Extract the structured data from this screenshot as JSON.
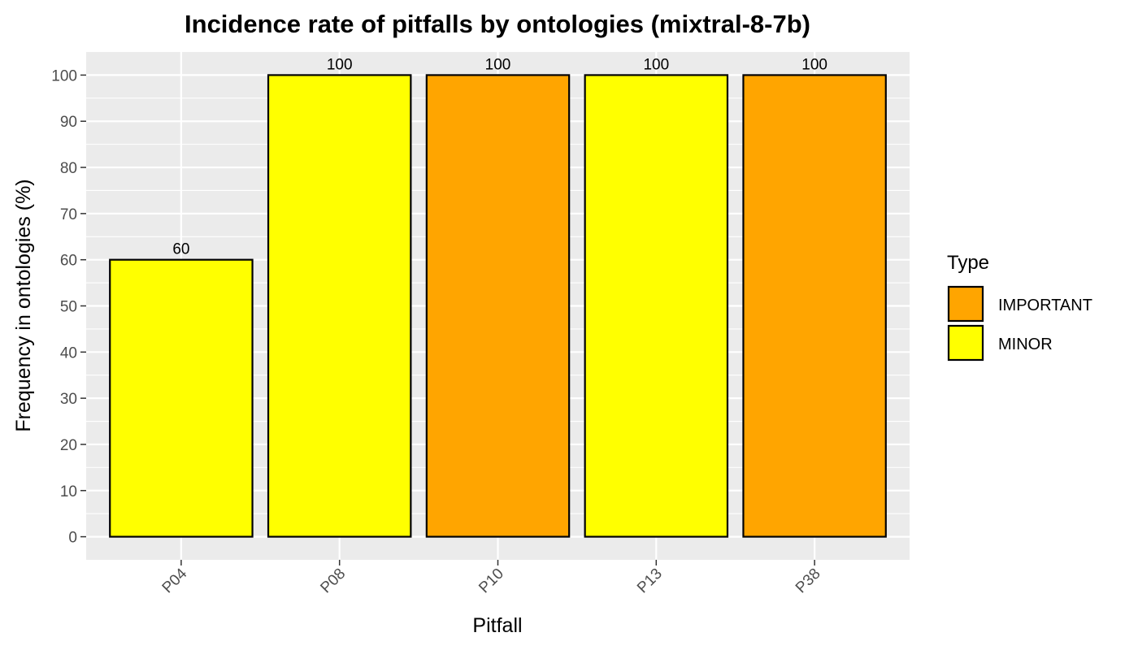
{
  "chart_data": {
    "type": "bar",
    "title": "Incidence rate of pitfalls by ontologies (mixtral-8-7b)",
    "xlabel": "Pitfall",
    "ylabel": "Frequency in ontologies (%)",
    "categories": [
      "P04",
      "P08",
      "P10",
      "P13",
      "P38"
    ],
    "values": [
      60,
      100,
      100,
      100,
      100
    ],
    "types": [
      "MINOR",
      "MINOR",
      "IMPORTANT",
      "MINOR",
      "IMPORTANT"
    ],
    "data_labels": [
      "60",
      "100",
      "100",
      "100",
      "100"
    ],
    "yticks": [
      0,
      10,
      20,
      30,
      40,
      50,
      60,
      70,
      80,
      90,
      100
    ],
    "ylim": [
      -5,
      105
    ],
    "grid": true,
    "legend": {
      "title": "Type",
      "position": "right",
      "entries": [
        {
          "label": "IMPORTANT",
          "color": "#FFA500"
        },
        {
          "label": "MINOR",
          "color": "#FFFF00"
        }
      ]
    },
    "colors": {
      "IMPORTANT": "#FFA500",
      "MINOR": "#FFFF00",
      "panel_background": "#EBEBEB",
      "gridline": "#FFFFFF",
      "bar_outline": "#000000"
    }
  }
}
